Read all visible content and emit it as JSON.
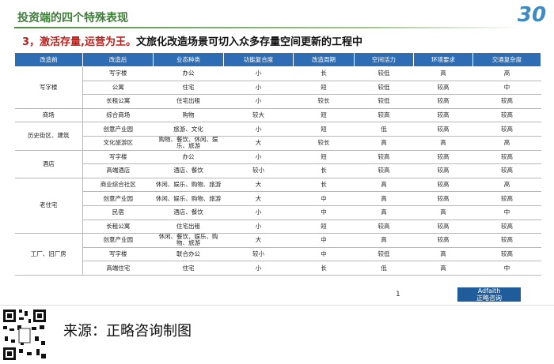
{
  "header": {
    "title": "投资端的四个特殊表现",
    "badge": "30"
  },
  "heading": {
    "highlight": "3，激活存量,运营为王。",
    "text": "文旅化改造场景可切入众多存量空间更新的工程中"
  },
  "table": {
    "columns": [
      "改造前",
      "改造后",
      "业态种类",
      "功能复合度",
      "改造周期",
      "空间活力",
      "环境要求",
      "交通复杂度"
    ],
    "groups": [
      {
        "name": "写字楼",
        "rows": [
          [
            "写字楼",
            "办公",
            "小",
            "长",
            "较低",
            "高",
            "高"
          ],
          [
            "公寓",
            "住宅",
            "小",
            "短",
            "较低",
            "较高",
            "中"
          ],
          [
            "长租公寓",
            "住宅出租",
            "小",
            "较长",
            "较低",
            "较高",
            "较高"
          ]
        ]
      },
      {
        "name": "商场",
        "rows": [
          [
            "综合商场",
            "购物",
            "较大",
            "短",
            "较高",
            "较高",
            "较高"
          ]
        ]
      },
      {
        "name": "历史街区、建筑",
        "rows": [
          [
            "创意产业园",
            "旅游、文化",
            "小",
            "短",
            "低",
            "较高",
            "较高"
          ],
          [
            "文化旅游区",
            "购物、餐饮、休闲、娱乐、旅游",
            "大",
            "较长",
            "高",
            "高",
            "高"
          ]
        ]
      },
      {
        "name": "酒店",
        "rows": [
          [
            "写字楼",
            "办公",
            "小",
            "短",
            "较高",
            "较高",
            "较高"
          ],
          [
            "高端酒店",
            "酒店、餐饮",
            "较小",
            "长",
            "较高",
            "较高",
            "较高"
          ]
        ]
      },
      {
        "name": "老住宅",
        "rows": [
          [
            "商业综合社区",
            "休闲、娱乐、购物、旅游",
            "大",
            "长",
            "高",
            "较高",
            "高"
          ],
          [
            "创意产业园",
            "休闲、娱乐、购物、旅游",
            "大",
            "中",
            "高",
            "较高",
            "较高"
          ],
          [
            "民宿",
            "酒店、餐饮",
            "小",
            "中",
            "高",
            "高",
            "中"
          ],
          [
            "长租公寓",
            "住宅出租",
            "小",
            "短",
            "较高",
            "较高",
            "较高"
          ]
        ]
      },
      {
        "name": "工厂、旧厂房",
        "rows": [
          [
            "创意产业园",
            "休闲、餐饮、娱乐、购物、旅游",
            "大",
            "中",
            "高",
            "较高",
            "较高"
          ],
          [
            "写字楼",
            "联合办公",
            "较小",
            "中",
            "较低",
            "高",
            "较高"
          ],
          [
            "高端住宅",
            "住宅",
            "小",
            "长",
            "低",
            "高",
            "中"
          ]
        ]
      }
    ]
  },
  "page_number": "1",
  "logo": {
    "brand": "Adfaith",
    "name": "正略咨询"
  },
  "footer": {
    "source": "来源：正略咨询制图"
  }
}
